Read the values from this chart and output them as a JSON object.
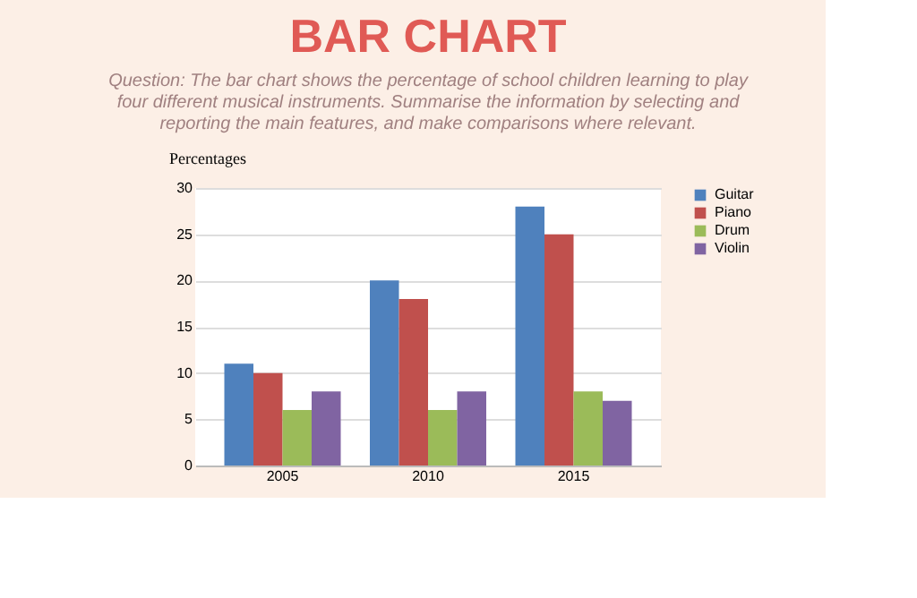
{
  "chart_data": {
    "type": "bar",
    "title": "BAR CHART",
    "subtitle": "Question: The bar chart shows the percentage of school children learning to play four different musical instruments. Summarise the information by selecting and reporting the main features, and make comparisons where relevant.",
    "ylabel": "Percentages",
    "categories": [
      "2005",
      "2010",
      "2015"
    ],
    "series": [
      {
        "name": "Guitar",
        "color": "#4f81bd",
        "values": [
          11,
          20,
          28
        ]
      },
      {
        "name": "Piano",
        "color": "#c0504d",
        "values": [
          10,
          18,
          25
        ]
      },
      {
        "name": "Drum",
        "color": "#9bbb59",
        "values": [
          6,
          6,
          8
        ]
      },
      {
        "name": "Violin",
        "color": "#8064a2",
        "values": [
          8,
          8,
          7
        ]
      }
    ],
    "ylim": [
      0,
      30
    ],
    "yticks": [
      0,
      5,
      10,
      15,
      20,
      25,
      30
    ],
    "grid": "y",
    "legend": "right"
  }
}
